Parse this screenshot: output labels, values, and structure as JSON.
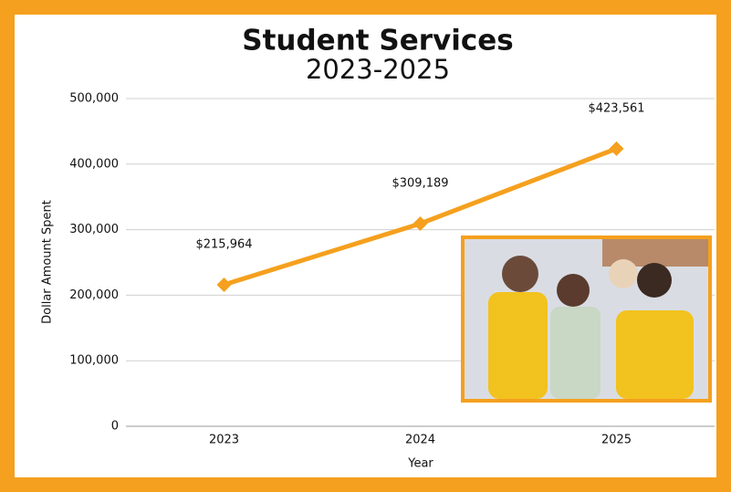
{
  "chart_data": {
    "type": "line",
    "title": "Student Services",
    "subtitle": "2023-2025",
    "x_label": "Year",
    "y_label": "Dollar Amount Spent",
    "categories": [
      "2023",
      "2024",
      "2025"
    ],
    "values": [
      215964,
      309189,
      423561
    ],
    "value_labels": [
      "$215,964",
      "$309,189",
      "$423,561"
    ],
    "color": "#f5a01e",
    "ylim": [
      0,
      500000
    ],
    "yticks": [
      0,
      {
        "value": 100000,
        "label": "100,000"
      },
      {
        "value": 200000,
        "label": "200,000"
      },
      {
        "value": 300000,
        "label": "300,000"
      },
      {
        "value": 400000,
        "label": "400,000"
      },
      {
        "value": 500000,
        "label": "500,000"
      }
    ],
    "grid": true
  }
}
